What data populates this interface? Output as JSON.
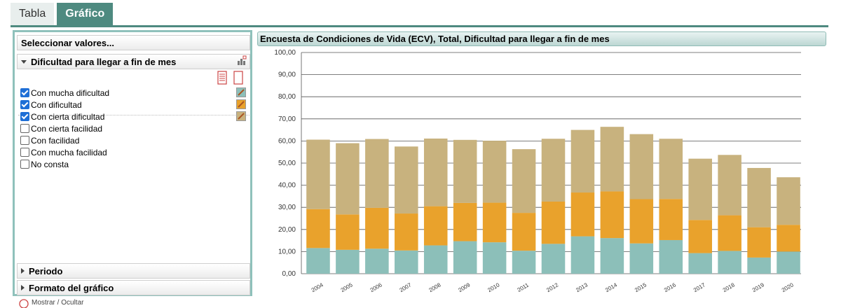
{
  "tabs": [
    {
      "label": "Tabla",
      "active": false
    },
    {
      "label": "Gráfico",
      "active": true
    }
  ],
  "left_panel": {
    "select_values_label": "Seleccionar valores...",
    "variable_title": "Dificultad para llegar a fin de mes",
    "items": [
      {
        "label": "Con mucha dificultad",
        "checked": true,
        "color": "#8cbfb9"
      },
      {
        "label": "Con dificultad",
        "checked": true,
        "color": "#e9a22c"
      },
      {
        "label": "Con cierta dificultad",
        "checked": true,
        "color": "#c8b27e"
      },
      {
        "label": "Con cierta facilidad",
        "checked": false
      },
      {
        "label": "Con facilidad",
        "checked": false
      },
      {
        "label": "Con mucha facilidad",
        "checked": false
      },
      {
        "label": "No consta",
        "checked": false
      }
    ],
    "periodo_label": "Periodo",
    "formato_label": "Formato del gráfico"
  },
  "footer": {
    "text": "Mostrar / Ocultar"
  },
  "chart_data": {
    "type": "bar",
    "stacked": true,
    "title": "Encuesta de Condiciones de Vida (ECV), Total, Dificultad para llegar a fin de mes",
    "categories": [
      "2004",
      "2005",
      "2006",
      "2007",
      "2008",
      "2009",
      "2010",
      "2011",
      "2012",
      "2013",
      "2014",
      "2015",
      "2016",
      "2017",
      "2018",
      "2019",
      "2020"
    ],
    "series": [
      {
        "name": "Con mucha dificultad",
        "color": "#8cbfb9",
        "values": [
          11.6,
          10.8,
          11.3,
          10.5,
          12.8,
          14.7,
          14.2,
          10.4,
          13.5,
          16.9,
          16.1,
          13.7,
          15.2,
          9.3,
          10.3,
          7.3,
          10.0
        ]
      },
      {
        "name": "Con dificultad",
        "color": "#e9a22c",
        "values": [
          17.6,
          16.0,
          18.5,
          16.7,
          17.7,
          17.3,
          17.9,
          17.1,
          19.1,
          19.8,
          21.1,
          20.0,
          18.6,
          15.0,
          16.1,
          13.7,
          12.1
        ]
      },
      {
        "name": "Con cierta dificultad",
        "color": "#c8b27e",
        "values": [
          31.4,
          32.2,
          31.1,
          30.3,
          30.6,
          28.5,
          28.0,
          28.8,
          28.4,
          28.3,
          29.2,
          29.4,
          27.2,
          27.7,
          27.3,
          26.8,
          21.5
        ]
      }
    ],
    "ylim": [
      0,
      100
    ],
    "y_ticks": [
      "0,00",
      "10,00",
      "20,00",
      "30,00",
      "40,00",
      "50,00",
      "60,00",
      "70,00",
      "80,00",
      "90,00",
      "100,00"
    ],
    "grid": true
  }
}
